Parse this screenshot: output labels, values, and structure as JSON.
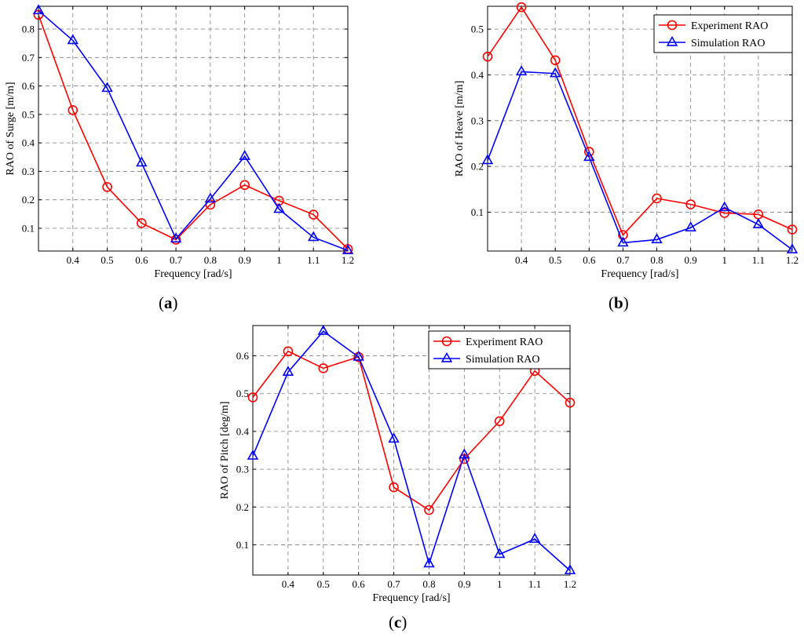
{
  "captions": {
    "a": {
      "open": "(",
      "letter": "a",
      "close": ")"
    },
    "b": {
      "open": "(",
      "letter": "b",
      "close": ")"
    },
    "c": {
      "open": "(",
      "letter": "c",
      "close": ")"
    }
  },
  "colors": {
    "experiment": "#ff0000",
    "simulation": "#0000ff",
    "grid": "#7f7f7f",
    "axis": "#000000"
  },
  "chart_data": [
    {
      "id": "a",
      "type": "line",
      "xlabel": "Frequency [rad/s]",
      "ylabel": "RAO of Surge [m/m]",
      "xlim": [
        0.3,
        1.2
      ],
      "ylim": [
        0.02,
        0.88
      ],
      "xticks": [
        0.4,
        0.5,
        0.6,
        0.7,
        0.8,
        0.9,
        1.0,
        1.1,
        1.2
      ],
      "xtick_labels": [
        "0.4",
        "0.5",
        "0.6",
        "0.7",
        "0.8",
        "0.9",
        "1",
        "1.1",
        "1.2"
      ],
      "yticks": [
        0.1,
        0.2,
        0.3,
        0.4,
        0.5,
        0.6,
        0.7,
        0.8
      ],
      "ytick_labels": [
        "0.1",
        "0.2",
        "0.3",
        "0.4",
        "0.5",
        "0.6",
        "0.7",
        "0.8"
      ],
      "grid": true,
      "legend": null,
      "x": [
        0.3,
        0.4,
        0.5,
        0.6,
        0.7,
        0.8,
        0.9,
        1.0,
        1.1,
        1.2
      ],
      "series": [
        {
          "name": "Experiment RAO",
          "color": "#ff0000",
          "marker": "circle",
          "values": [
            0.85,
            0.515,
            0.245,
            0.118,
            0.06,
            0.183,
            0.252,
            0.197,
            0.148,
            0.027
          ]
        },
        {
          "name": "Simulation RAO",
          "color": "#0000ff",
          "marker": "triangle",
          "values": [
            0.865,
            0.76,
            0.592,
            0.33,
            0.063,
            0.203,
            0.353,
            0.167,
            0.068,
            0.022
          ]
        }
      ]
    },
    {
      "id": "b",
      "type": "line",
      "xlabel": "Frequency [rad/s]",
      "ylabel": "RAO of Heave [m/m]",
      "xlim": [
        0.3,
        1.2
      ],
      "ylim": [
        0.015,
        0.55
      ],
      "xticks": [
        0.4,
        0.5,
        0.6,
        0.7,
        0.8,
        0.9,
        1.0,
        1.1,
        1.2
      ],
      "xtick_labels": [
        "0.4",
        "0.5",
        "0.6",
        "0.7",
        "0.8",
        "0.9",
        "1",
        "1.1",
        "1.2"
      ],
      "yticks": [
        0.1,
        0.2,
        0.3,
        0.4,
        0.5
      ],
      "ytick_labels": [
        "0.1",
        "0.2",
        "0.3",
        "0.4",
        "0.5"
      ],
      "grid": true,
      "legend": "top-right",
      "x": [
        0.3,
        0.4,
        0.5,
        0.6,
        0.7,
        0.8,
        0.9,
        1.0,
        1.1,
        1.2
      ],
      "series": [
        {
          "name": "Experiment RAO",
          "color": "#ff0000",
          "marker": "circle",
          "values": [
            0.44,
            0.548,
            0.432,
            0.232,
            0.05,
            0.13,
            0.117,
            0.098,
            0.095,
            0.062
          ]
        },
        {
          "name": "Simulation RAO",
          "color": "#0000ff",
          "marker": "triangle",
          "values": [
            0.213,
            0.407,
            0.403,
            0.22,
            0.033,
            0.04,
            0.066,
            0.11,
            0.073,
            0.018
          ]
        }
      ]
    },
    {
      "id": "c",
      "type": "line",
      "xlabel": "Frequency [rad/s]",
      "ylabel": "RAO of Pitch [deg/m]",
      "xlim": [
        0.3,
        1.2
      ],
      "ylim": [
        0.02,
        0.68
      ],
      "xticks": [
        0.4,
        0.5,
        0.6,
        0.7,
        0.8,
        0.9,
        1.0,
        1.1,
        1.2
      ],
      "xtick_labels": [
        "0.4",
        "0.5",
        "0.6",
        "0.7",
        "0.8",
        "0.9",
        "1",
        "1.1",
        "1.2"
      ],
      "yticks": [
        0.1,
        0.2,
        0.3,
        0.4,
        0.5,
        0.6
      ],
      "ytick_labels": [
        "0.1",
        "0.2",
        "0.3",
        "0.4",
        "0.5",
        "0.6"
      ],
      "grid": true,
      "legend": "top-right",
      "x": [
        0.3,
        0.4,
        0.5,
        0.6,
        0.7,
        0.8,
        0.9,
        1.0,
        1.1,
        1.2
      ],
      "series": [
        {
          "name": "Experiment RAO",
          "color": "#ff0000",
          "marker": "circle",
          "values": [
            0.49,
            0.612,
            0.567,
            0.597,
            0.252,
            0.192,
            0.327,
            0.427,
            0.56,
            0.476
          ]
        },
        {
          "name": "Simulation RAO",
          "color": "#0000ff",
          "marker": "triangle",
          "values": [
            0.335,
            0.557,
            0.665,
            0.597,
            0.38,
            0.05,
            0.338,
            0.075,
            0.115,
            0.032
          ]
        }
      ]
    }
  ]
}
